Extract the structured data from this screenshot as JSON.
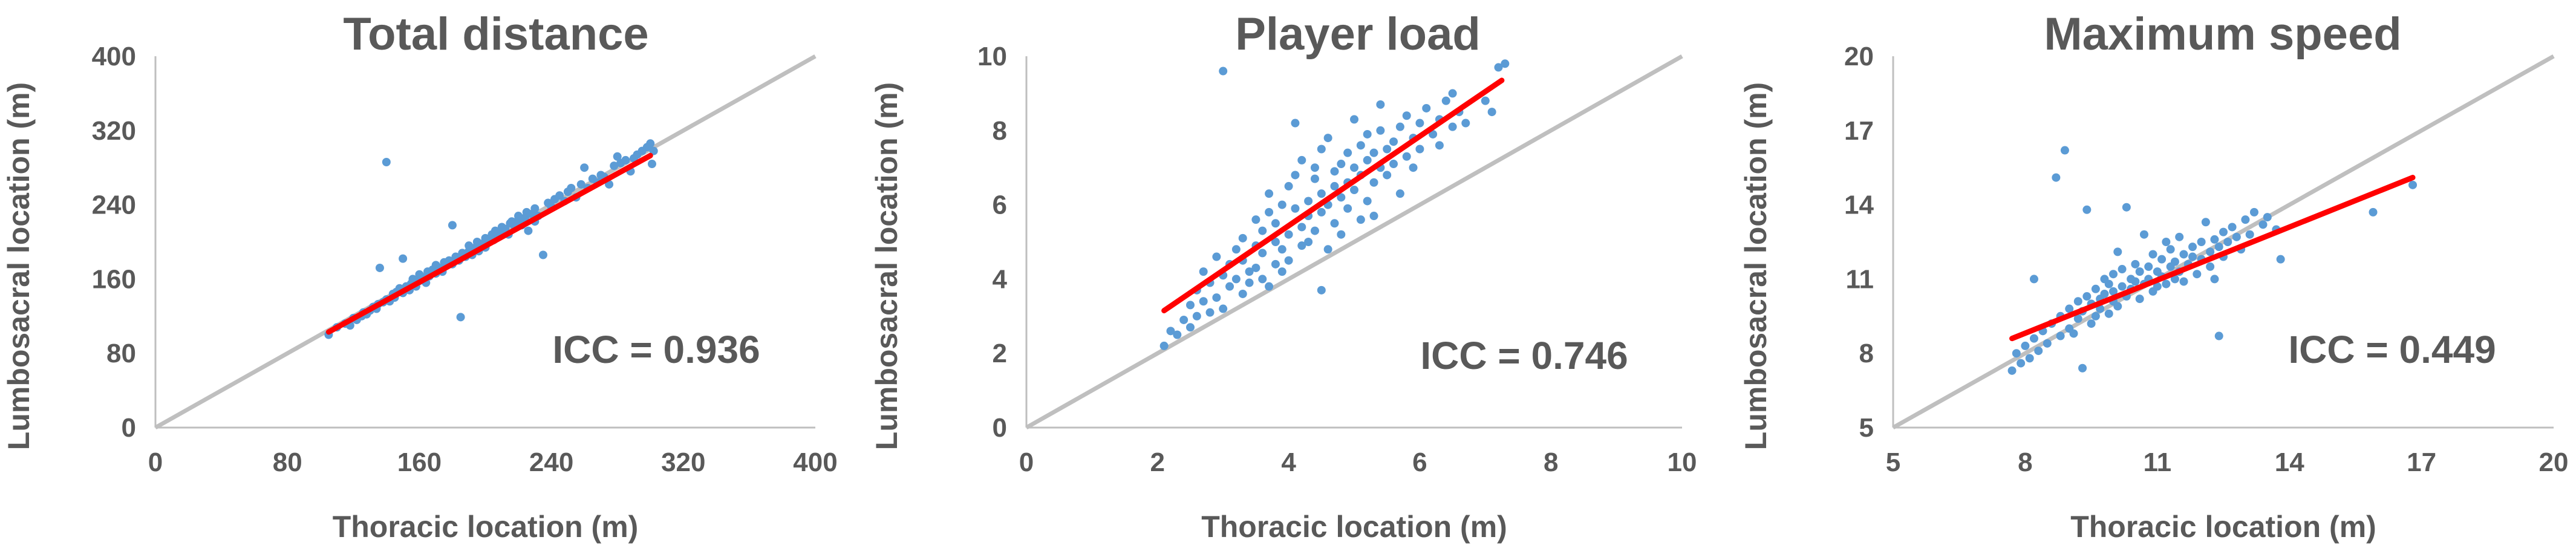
{
  "chart_data": [
    {
      "type": "scatter",
      "title": "Total distance",
      "xlabel": "Thoracic location (m)",
      "ylabel": "Lumbosacral location (m)",
      "xlim": [
        0,
        400
      ],
      "ylim": [
        0,
        400
      ],
      "xticks": [
        "0",
        "80",
        "160",
        "240",
        "320",
        "400"
      ],
      "yticks": [
        "0",
        "80",
        "160",
        "240",
        "320",
        "400"
      ],
      "annotation": "ICC = 0.936",
      "identity_line": [
        [
          0,
          0
        ],
        [
          400,
          400
        ]
      ],
      "fit_line": [
        [
          105,
          103
        ],
        [
          300,
          293
        ]
      ],
      "points": [
        [
          105,
          100
        ],
        [
          110,
          108
        ],
        [
          115,
          112
        ],
        [
          118,
          110
        ],
        [
          120,
          118
        ],
        [
          122,
          116
        ],
        [
          125,
          120
        ],
        [
          126,
          124
        ],
        [
          128,
          122
        ],
        [
          130,
          126
        ],
        [
          132,
          130
        ],
        [
          134,
          128
        ],
        [
          135,
          133
        ],
        [
          136,
          172
        ],
        [
          138,
          135
        ],
        [
          140,
          138
        ],
        [
          140,
          286
        ],
        [
          142,
          136
        ],
        [
          144,
          144
        ],
        [
          145,
          140
        ],
        [
          146,
          146
        ],
        [
          148,
          150
        ],
        [
          150,
          145
        ],
        [
          150,
          182
        ],
        [
          152,
          152
        ],
        [
          154,
          148
        ],
        [
          155,
          155
        ],
        [
          156,
          160
        ],
        [
          158,
          152
        ],
        [
          160,
          158
        ],
        [
          160,
          165
        ],
        [
          162,
          162
        ],
        [
          164,
          156
        ],
        [
          165,
          168
        ],
        [
          166,
          163
        ],
        [
          168,
          170
        ],
        [
          170,
          166
        ],
        [
          170,
          175
        ],
        [
          172,
          172
        ],
        [
          174,
          168
        ],
        [
          175,
          178
        ],
        [
          176,
          174
        ],
        [
          178,
          180
        ],
        [
          180,
          176
        ],
        [
          180,
          218
        ],
        [
          182,
          184
        ],
        [
          184,
          180
        ],
        [
          185,
          119
        ],
        [
          186,
          188
        ],
        [
          188,
          184
        ],
        [
          190,
          190
        ],
        [
          190,
          196
        ],
        [
          192,
          186
        ],
        [
          194,
          194
        ],
        [
          195,
          200
        ],
        [
          196,
          190
        ],
        [
          198,
          198
        ],
        [
          200,
          204
        ],
        [
          200,
          194
        ],
        [
          202,
          200
        ],
        [
          204,
          208
        ],
        [
          205,
          202
        ],
        [
          206,
          212
        ],
        [
          208,
          206
        ],
        [
          210,
          210
        ],
        [
          210,
          216
        ],
        [
          212,
          214
        ],
        [
          214,
          208
        ],
        [
          215,
          220
        ],
        [
          216,
          222
        ],
        [
          218,
          216
        ],
        [
          220,
          224
        ],
        [
          220,
          228
        ],
        [
          222,
          218
        ],
        [
          224,
          226
        ],
        [
          225,
          232
        ],
        [
          226,
          212
        ],
        [
          228,
          230
        ],
        [
          230,
          236
        ],
        [
          230,
          222
        ],
        [
          232,
          228
        ],
        [
          235,
          186
        ],
        [
          238,
          242
        ],
        [
          240,
          238
        ],
        [
          242,
          246
        ],
        [
          245,
          250
        ],
        [
          248,
          244
        ],
        [
          250,
          254
        ],
        [
          252,
          258
        ],
        [
          255,
          248
        ],
        [
          258,
          262
        ],
        [
          260,
          280
        ],
        [
          262,
          258
        ],
        [
          265,
          268
        ],
        [
          268,
          264
        ],
        [
          270,
          272
        ],
        [
          272,
          270
        ],
        [
          275,
          262
        ],
        [
          278,
          282
        ],
        [
          280,
          292
        ],
        [
          282,
          285
        ],
        [
          285,
          288
        ],
        [
          288,
          276
        ],
        [
          290,
          290
        ],
        [
          292,
          294
        ],
        [
          295,
          298
        ],
        [
          298,
          302
        ],
        [
          300,
          306
        ],
        [
          301,
          284
        ],
        [
          302,
          298
        ]
      ]
    },
    {
      "type": "scatter",
      "title": "Player load",
      "xlabel": "Thoracic location (m)",
      "ylabel": "Lumbosacral location (m)",
      "xlim": [
        0,
        10
      ],
      "ylim": [
        0,
        10
      ],
      "xticks": [
        "0",
        "2",
        "4",
        "6",
        "8",
        "10"
      ],
      "yticks": [
        "0",
        "2",
        "4",
        "6",
        "8",
        "10"
      ],
      "annotation": "ICC = 0.746",
      "identity_line": [
        [
          0,
          0
        ],
        [
          10,
          10
        ]
      ],
      "fit_line": [
        [
          2.1,
          3.15
        ],
        [
          7.25,
          9.35
        ]
      ],
      "points": [
        [
          2.1,
          2.2
        ],
        [
          2.2,
          2.6
        ],
        [
          2.3,
          2.5
        ],
        [
          2.4,
          2.9
        ],
        [
          2.5,
          3.3
        ],
        [
          2.5,
          2.7
        ],
        [
          2.6,
          3.0
        ],
        [
          2.6,
          3.7
        ],
        [
          2.7,
          3.4
        ],
        [
          2.7,
          4.2
        ],
        [
          2.8,
          3.1
        ],
        [
          2.8,
          3.9
        ],
        [
          2.9,
          4.6
        ],
        [
          2.9,
          3.5
        ],
        [
          3.0,
          4.1
        ],
        [
          3.0,
          9.6
        ],
        [
          3.0,
          3.2
        ],
        [
          3.1,
          4.4
        ],
        [
          3.1,
          3.8
        ],
        [
          3.2,
          4.8
        ],
        [
          3.2,
          4.0
        ],
        [
          3.3,
          3.6
        ],
        [
          3.3,
          4.5
        ],
        [
          3.3,
          5.1
        ],
        [
          3.4,
          4.2
        ],
        [
          3.4,
          3.9
        ],
        [
          3.5,
          4.9
        ],
        [
          3.5,
          4.3
        ],
        [
          3.5,
          5.6
        ],
        [
          3.6,
          4.0
        ],
        [
          3.6,
          5.3
        ],
        [
          3.6,
          4.7
        ],
        [
          3.7,
          3.8
        ],
        [
          3.7,
          5.8
        ],
        [
          3.7,
          6.3
        ],
        [
          3.8,
          4.4
        ],
        [
          3.8,
          5.0
        ],
        [
          3.8,
          5.5
        ],
        [
          3.9,
          4.2
        ],
        [
          3.9,
          6.0
        ],
        [
          3.9,
          4.8
        ],
        [
          4.0,
          5.2
        ],
        [
          4.0,
          6.5
        ],
        [
          4.0,
          4.5
        ],
        [
          4.1,
          8.2
        ],
        [
          4.1,
          5.9
        ],
        [
          4.1,
          6.8
        ],
        [
          4.2,
          5.4
        ],
        [
          4.2,
          4.9
        ],
        [
          4.2,
          7.2
        ],
        [
          4.3,
          6.1
        ],
        [
          4.3,
          5.0
        ],
        [
          4.3,
          5.7
        ],
        [
          4.4,
          6.7
        ],
        [
          4.4,
          5.3
        ],
        [
          4.4,
          7.0
        ],
        [
          4.5,
          3.7
        ],
        [
          4.5,
          6.3
        ],
        [
          4.5,
          5.8
        ],
        [
          4.5,
          7.5
        ],
        [
          4.6,
          6.0
        ],
        [
          4.6,
          4.8
        ],
        [
          4.6,
          7.8
        ],
        [
          4.7,
          6.5
        ],
        [
          4.7,
          5.5
        ],
        [
          4.7,
          6.9
        ],
        [
          4.8,
          7.1
        ],
        [
          4.8,
          6.2
        ],
        [
          4.8,
          5.2
        ],
        [
          4.9,
          6.6
        ],
        [
          4.9,
          7.4
        ],
        [
          4.9,
          5.9
        ],
        [
          5.0,
          7.0
        ],
        [
          5.0,
          6.4
        ],
        [
          5.0,
          8.3
        ],
        [
          5.1,
          5.6
        ],
        [
          5.1,
          7.6
        ],
        [
          5.1,
          6.8
        ],
        [
          5.2,
          7.2
        ],
        [
          5.2,
          6.1
        ],
        [
          5.2,
          7.9
        ],
        [
          5.3,
          6.6
        ],
        [
          5.3,
          7.4
        ],
        [
          5.3,
          5.7
        ],
        [
          5.4,
          8.0
        ],
        [
          5.4,
          7.0
        ],
        [
          5.4,
          8.7
        ],
        [
          5.5,
          7.5
        ],
        [
          5.5,
          6.8
        ],
        [
          5.6,
          7.7
        ],
        [
          5.6,
          7.1
        ],
        [
          5.7,
          8.1
        ],
        [
          5.7,
          6.3
        ],
        [
          5.8,
          7.3
        ],
        [
          5.8,
          8.4
        ],
        [
          5.9,
          7.8
        ],
        [
          5.9,
          7.0
        ],
        [
          6.0,
          8.2
        ],
        [
          6.0,
          7.5
        ],
        [
          6.1,
          8.6
        ],
        [
          6.2,
          7.9
        ],
        [
          6.3,
          8.3
        ],
        [
          6.3,
          7.6
        ],
        [
          6.4,
          8.8
        ],
        [
          6.5,
          8.1
        ],
        [
          6.5,
          9.0
        ],
        [
          6.6,
          8.5
        ],
        [
          6.7,
          8.2
        ],
        [
          7.0,
          8.8
        ],
        [
          7.1,
          8.5
        ],
        [
          7.2,
          9.7
        ],
        [
          7.3,
          9.8
        ]
      ]
    },
    {
      "type": "scatter",
      "title": "Maximum speed",
      "xlabel": "Thoracic location (m)",
      "ylabel": "Lumbosacral location (m)",
      "xlim": [
        5,
        20
      ],
      "ylim": [
        5,
        20
      ],
      "xticks": [
        "5",
        "8",
        "11",
        "14",
        "17",
        "20"
      ],
      "yticks": [
        "5",
        "8",
        "11",
        "14",
        "17",
        "20"
      ],
      "annotation": "ICC = 0.449",
      "identity_line": [
        [
          5,
          5
        ],
        [
          20,
          20
        ]
      ],
      "fit_line": [
        [
          7.7,
          8.6
        ],
        [
          16.8,
          15.1
        ]
      ],
      "points": [
        [
          7.7,
          7.3
        ],
        [
          7.8,
          8.0
        ],
        [
          7.9,
          7.6
        ],
        [
          8.0,
          8.3
        ],
        [
          8.1,
          7.8
        ],
        [
          8.2,
          8.6
        ],
        [
          8.2,
          11.0
        ],
        [
          8.3,
          8.1
        ],
        [
          8.4,
          8.9
        ],
        [
          8.5,
          8.4
        ],
        [
          8.6,
          9.2
        ],
        [
          8.7,
          15.1
        ],
        [
          8.8,
          8.7
        ],
        [
          8.8,
          9.5
        ],
        [
          8.9,
          16.2
        ],
        [
          9.0,
          9.0
        ],
        [
          9.0,
          9.8
        ],
        [
          9.1,
          8.8
        ],
        [
          9.2,
          9.4
        ],
        [
          9.2,
          10.1
        ],
        [
          9.3,
          7.4
        ],
        [
          9.3,
          9.7
        ],
        [
          9.4,
          10.3
        ],
        [
          9.4,
          13.8
        ],
        [
          9.5,
          9.2
        ],
        [
          9.5,
          10.0
        ],
        [
          9.6,
          10.6
        ],
        [
          9.6,
          9.5
        ],
        [
          9.7,
          10.2
        ],
        [
          9.7,
          9.8
        ],
        [
          9.8,
          11.0
        ],
        [
          9.8,
          10.4
        ],
        [
          9.9,
          9.6
        ],
        [
          9.9,
          10.8
        ],
        [
          10.0,
          10.1
        ],
        [
          10.0,
          11.2
        ],
        [
          10.0,
          10.5
        ],
        [
          10.1,
          9.9
        ],
        [
          10.1,
          12.1
        ],
        [
          10.2,
          10.7
        ],
        [
          10.2,
          11.4
        ],
        [
          10.3,
          10.3
        ],
        [
          10.3,
          13.9
        ],
        [
          10.4,
          11.0
        ],
        [
          10.4,
          10.6
        ],
        [
          10.5,
          11.6
        ],
        [
          10.5,
          10.9
        ],
        [
          10.6,
          10.2
        ],
        [
          10.6,
          11.3
        ],
        [
          10.7,
          12.8
        ],
        [
          10.7,
          10.8
        ],
        [
          10.8,
          11.5
        ],
        [
          10.8,
          11.0
        ],
        [
          10.9,
          10.5
        ],
        [
          10.9,
          12.0
        ],
        [
          11.0,
          11.3
        ],
        [
          11.0,
          10.7
        ],
        [
          11.1,
          11.8
        ],
        [
          11.1,
          11.1
        ],
        [
          11.2,
          12.5
        ],
        [
          11.2,
          10.8
        ],
        [
          11.3,
          11.5
        ],
        [
          11.3,
          12.2
        ],
        [
          11.4,
          11.0
        ],
        [
          11.4,
          11.7
        ],
        [
          11.5,
          12.7
        ],
        [
          11.5,
          11.3
        ],
        [
          11.6,
          12.0
        ],
        [
          11.6,
          10.9
        ],
        [
          11.7,
          11.6
        ],
        [
          11.8,
          12.3
        ],
        [
          11.8,
          11.9
        ],
        [
          11.9,
          11.2
        ],
        [
          12.0,
          12.5
        ],
        [
          12.0,
          11.8
        ],
        [
          12.1,
          13.3
        ],
        [
          12.2,
          12.1
        ],
        [
          12.2,
          11.5
        ],
        [
          12.3,
          12.6
        ],
        [
          12.3,
          11.0
        ],
        [
          12.4,
          8.7
        ],
        [
          12.4,
          12.3
        ],
        [
          12.5,
          12.9
        ],
        [
          12.5,
          11.9
        ],
        [
          12.6,
          12.5
        ],
        [
          12.7,
          13.1
        ],
        [
          12.8,
          12.7
        ],
        [
          12.9,
          12.2
        ],
        [
          13.0,
          13.4
        ],
        [
          13.1,
          12.8
        ],
        [
          13.2,
          13.7
        ],
        [
          13.4,
          13.2
        ],
        [
          13.5,
          13.5
        ],
        [
          13.7,
          13.0
        ],
        [
          13.8,
          11.8
        ],
        [
          15.9,
          13.7
        ],
        [
          16.8,
          14.8
        ]
      ]
    }
  ]
}
